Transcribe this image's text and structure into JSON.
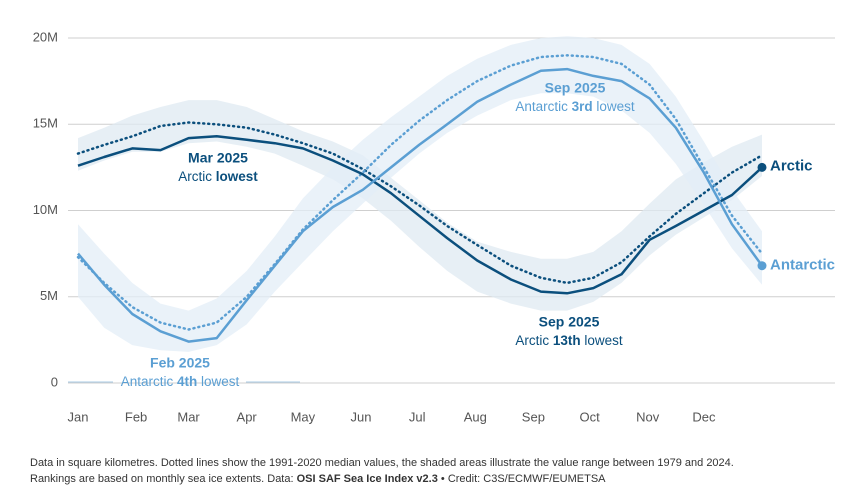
{
  "chart_data": {
    "type": "line",
    "x": [
      1,
      15,
      30,
      45,
      60,
      75,
      91,
      106,
      121,
      137,
      153,
      168,
      183,
      198,
      214,
      232,
      248,
      262,
      276,
      291,
      306,
      320,
      335,
      350,
      366
    ],
    "xlim": [
      1,
      366
    ],
    "xticks": [
      {
        "value": 1,
        "label": "Jan"
      },
      {
        "value": 32,
        "label": "Feb"
      },
      {
        "value": 60,
        "label": "Mar"
      },
      {
        "value": 91,
        "label": "Apr"
      },
      {
        "value": 121,
        "label": "May"
      },
      {
        "value": 152,
        "label": "Jun"
      },
      {
        "value": 182,
        "label": "Jul"
      },
      {
        "value": 213,
        "label": "Aug"
      },
      {
        "value": 244,
        "label": "Sep"
      },
      {
        "value": 274,
        "label": "Oct"
      },
      {
        "value": 305,
        "label": "Nov"
      },
      {
        "value": 335,
        "label": "Dec"
      }
    ],
    "ylim": [
      0,
      20
    ],
    "yticks": [
      0,
      {
        "value": 5,
        "label": "5M"
      },
      {
        "value": 10,
        "label": "10M"
      },
      {
        "value": 15,
        "label": "15M"
      },
      {
        "value": 20,
        "label": "20M"
      }
    ],
    "grid": true,
    "series": [
      {
        "name": "Arctic",
        "color": "#0b4f7d",
        "band_color": "#dfe9f1",
        "values": [
          12.6,
          13.1,
          13.6,
          13.5,
          14.2,
          14.3,
          14.1,
          13.9,
          13.6,
          12.9,
          12.1,
          11.0,
          9.7,
          8.4,
          7.1,
          6.0,
          5.3,
          5.2,
          5.5,
          6.3,
          8.3,
          9.1,
          10.0,
          10.9,
          12.5
        ],
        "median": [
          13.3,
          13.8,
          14.3,
          14.9,
          15.1,
          15.0,
          14.8,
          14.4,
          13.9,
          13.3,
          12.4,
          11.4,
          10.3,
          9.1,
          8.0,
          6.8,
          6.1,
          5.8,
          6.1,
          7.0,
          8.5,
          9.8,
          11.0,
          12.2,
          13.2
        ],
        "range_min": [
          12.3,
          12.9,
          13.4,
          13.4,
          13.9,
          14.0,
          13.7,
          13.3,
          12.6,
          11.8,
          10.7,
          9.4,
          7.9,
          6.5,
          5.3,
          4.6,
          4.2,
          4.2,
          4.7,
          5.8,
          7.4,
          8.6,
          9.6,
          10.6,
          12.0
        ],
        "range_max": [
          14.2,
          14.8,
          15.5,
          16.0,
          16.4,
          16.4,
          16.0,
          15.3,
          14.6,
          14.0,
          13.2,
          11.9,
          10.6,
          9.3,
          8.2,
          7.6,
          7.2,
          7.2,
          7.6,
          8.8,
          10.4,
          11.8,
          12.8,
          13.7,
          14.4
        ]
      },
      {
        "name": "Antarctic",
        "color": "#5b9fd3",
        "band_color": "#e3eef7",
        "values": [
          7.5,
          5.7,
          4.0,
          3.0,
          2.4,
          2.6,
          4.8,
          6.8,
          8.8,
          10.2,
          11.2,
          12.5,
          13.8,
          15.0,
          16.3,
          17.3,
          18.1,
          18.2,
          17.8,
          17.5,
          16.5,
          14.8,
          12.2,
          9.2,
          6.8
        ],
        "median": [
          7.3,
          5.8,
          4.4,
          3.5,
          3.1,
          3.5,
          5.0,
          6.9,
          8.9,
          10.6,
          12.2,
          13.8,
          15.2,
          16.4,
          17.5,
          18.4,
          18.9,
          19.0,
          18.9,
          18.5,
          17.3,
          15.3,
          12.5,
          9.7,
          7.5
        ],
        "range_min": [
          5.0,
          3.2,
          2.2,
          1.9,
          1.8,
          2.2,
          3.4,
          5.3,
          7.0,
          8.8,
          10.4,
          11.9,
          13.3,
          14.5,
          15.5,
          16.4,
          16.8,
          16.8,
          16.6,
          15.8,
          14.5,
          12.7,
          10.3,
          7.8,
          5.7
        ],
        "range_max": [
          9.2,
          7.5,
          5.8,
          4.6,
          4.2,
          4.9,
          6.5,
          8.5,
          10.7,
          12.5,
          14.1,
          15.4,
          16.6,
          17.8,
          18.8,
          19.6,
          20.0,
          20.1,
          20.0,
          19.6,
          18.5,
          16.6,
          14.0,
          11.2,
          8.8
        ]
      }
    ],
    "annotations": [
      {
        "title": "Mar 2025",
        "parts": [
          "Arctic",
          "lowest"
        ],
        "bold": 1,
        "series": 0
      },
      {
        "title": "Sep 2025",
        "parts": [
          "Antarctic",
          "3rd",
          "lowest"
        ],
        "bold": 1,
        "series": 1
      },
      {
        "title": "Sep 2025",
        "parts": [
          "Arctic",
          "13th",
          "lowest"
        ],
        "bold": 1,
        "series": 0
      },
      {
        "title": "Feb 2025",
        "parts": [
          "Antarctic",
          "4th",
          "lowest"
        ],
        "bold": 1,
        "series": 1
      }
    ],
    "footnote": [
      {
        "parts": [
          "Data in square kilometres. Dotted lines show the 1991-2020 median values, the shaded areas illustrate the value range between 1979 and 2024."
        ],
        "bold": -1
      },
      {
        "parts": [
          "Rankings are based on monthly sea ice extents. Data:",
          "OSI SAF Sea Ice Index v2.3",
          "• Credit: C3S/ECMWF/EUMETSA"
        ],
        "bold": 1
      }
    ]
  }
}
